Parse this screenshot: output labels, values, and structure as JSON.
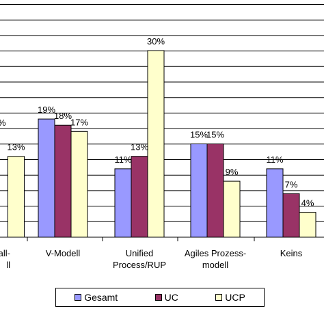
{
  "chart_data": {
    "type": "bar",
    "categories": [
      "fall-\nll",
      "V-Modell",
      "Unified\nProcess/RUP",
      "Agiles Prozess-\nmodell",
      "Keins"
    ],
    "series": [
      {
        "name": "Gesamt",
        "color": "#9999ff",
        "values": [
          null,
          19,
          11,
          15,
          11
        ],
        "labels": [
          "",
          "19%",
          "11%",
          "15%",
          "11%"
        ]
      },
      {
        "name": "UC",
        "color": "#993366",
        "values": [
          null,
          18,
          13,
          15,
          7
        ],
        "labels": [
          "",
          "18%",
          "13%",
          "15%",
          "7%"
        ]
      },
      {
        "name": "UCP",
        "color": "#ffffcc",
        "values": [
          13,
          17,
          30,
          9,
          4
        ],
        "labels": [
          "13%",
          "17%",
          "30%",
          "9%",
          "4%"
        ]
      }
    ],
    "partial_labels": [
      "%"
    ],
    "ylim": [
      0,
      32
    ],
    "grid": true,
    "legend_position": "bottom"
  }
}
